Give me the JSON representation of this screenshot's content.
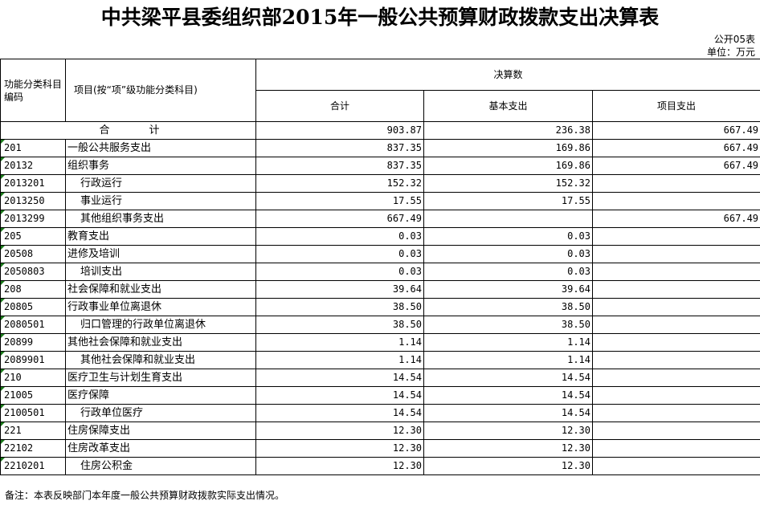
{
  "title": "中共梁平县委组织部2015年一般公共预算财政拨款支出决算表",
  "form_code": "公开05表",
  "unit": "单位：万元",
  "headers": {
    "code": "功能分类科目编码",
    "name": "项目(按“项”级功能分类科目)",
    "group": "决算数",
    "total": "合计",
    "basic": "基本支出",
    "project": "项目支出"
  },
  "total_row": {
    "label": "合　计",
    "total": "903.87",
    "basic": "236.38",
    "project": "667.49"
  },
  "rows": [
    {
      "code": "201",
      "name": "一般公共服务支出",
      "level": 1,
      "total": "837.35",
      "basic": "169.86",
      "project": "667.49"
    },
    {
      "code": "20132",
      "name": "组织事务",
      "level": 2,
      "total": "837.35",
      "basic": "169.86",
      "project": "667.49"
    },
    {
      "code": "2013201",
      "name": "行政运行",
      "level": 3,
      "total": "152.32",
      "basic": "152.32",
      "project": ""
    },
    {
      "code": "2013250",
      "name": "事业运行",
      "level": 3,
      "total": "17.55",
      "basic": "17.55",
      "project": ""
    },
    {
      "code": "2013299",
      "name": "其他组织事务支出",
      "level": 3,
      "total": "667.49",
      "basic": "",
      "project": "667.49"
    },
    {
      "code": "205",
      "name": "教育支出",
      "level": 1,
      "total": "0.03",
      "basic": "0.03",
      "project": ""
    },
    {
      "code": "20508",
      "name": "进修及培训",
      "level": 2,
      "total": "0.03",
      "basic": "0.03",
      "project": ""
    },
    {
      "code": "2050803",
      "name": "培训支出",
      "level": 3,
      "total": "0.03",
      "basic": "0.03",
      "project": ""
    },
    {
      "code": "208",
      "name": "社会保障和就业支出",
      "level": 1,
      "total": "39.64",
      "basic": "39.64",
      "project": ""
    },
    {
      "code": "20805",
      "name": "行政事业单位离退休",
      "level": 2,
      "total": "38.50",
      "basic": "38.50",
      "project": ""
    },
    {
      "code": "2080501",
      "name": "归口管理的行政单位离退休",
      "level": 3,
      "total": "38.50",
      "basic": "38.50",
      "project": ""
    },
    {
      "code": "20899",
      "name": "其他社会保障和就业支出",
      "level": 2,
      "total": "1.14",
      "basic": "1.14",
      "project": ""
    },
    {
      "code": "2089901",
      "name": "其他社会保障和就业支出",
      "level": 3,
      "total": "1.14",
      "basic": "1.14",
      "project": ""
    },
    {
      "code": "210",
      "name": "医疗卫生与计划生育支出",
      "level": 1,
      "total": "14.54",
      "basic": "14.54",
      "project": ""
    },
    {
      "code": "21005",
      "name": "医疗保障",
      "level": 2,
      "total": "14.54",
      "basic": "14.54",
      "project": ""
    },
    {
      "code": "2100501",
      "name": "行政单位医疗",
      "level": 3,
      "total": "14.54",
      "basic": "14.54",
      "project": ""
    },
    {
      "code": "221",
      "name": "住房保障支出",
      "level": 1,
      "total": "12.30",
      "basic": "12.30",
      "project": ""
    },
    {
      "code": "22102",
      "name": "住房改革支出",
      "level": 2,
      "total": "12.30",
      "basic": "12.30",
      "project": ""
    },
    {
      "code": "2210201",
      "name": "住房公积金",
      "level": 3,
      "total": "12.30",
      "basic": "12.30",
      "project": ""
    }
  ],
  "note": "备注：本表反映部门本年度一般公共预算财政拨款实际支出情况。",
  "colors": {
    "text": "#000000",
    "grid": "#000000",
    "cell_marker": "#1a7a1a"
  }
}
